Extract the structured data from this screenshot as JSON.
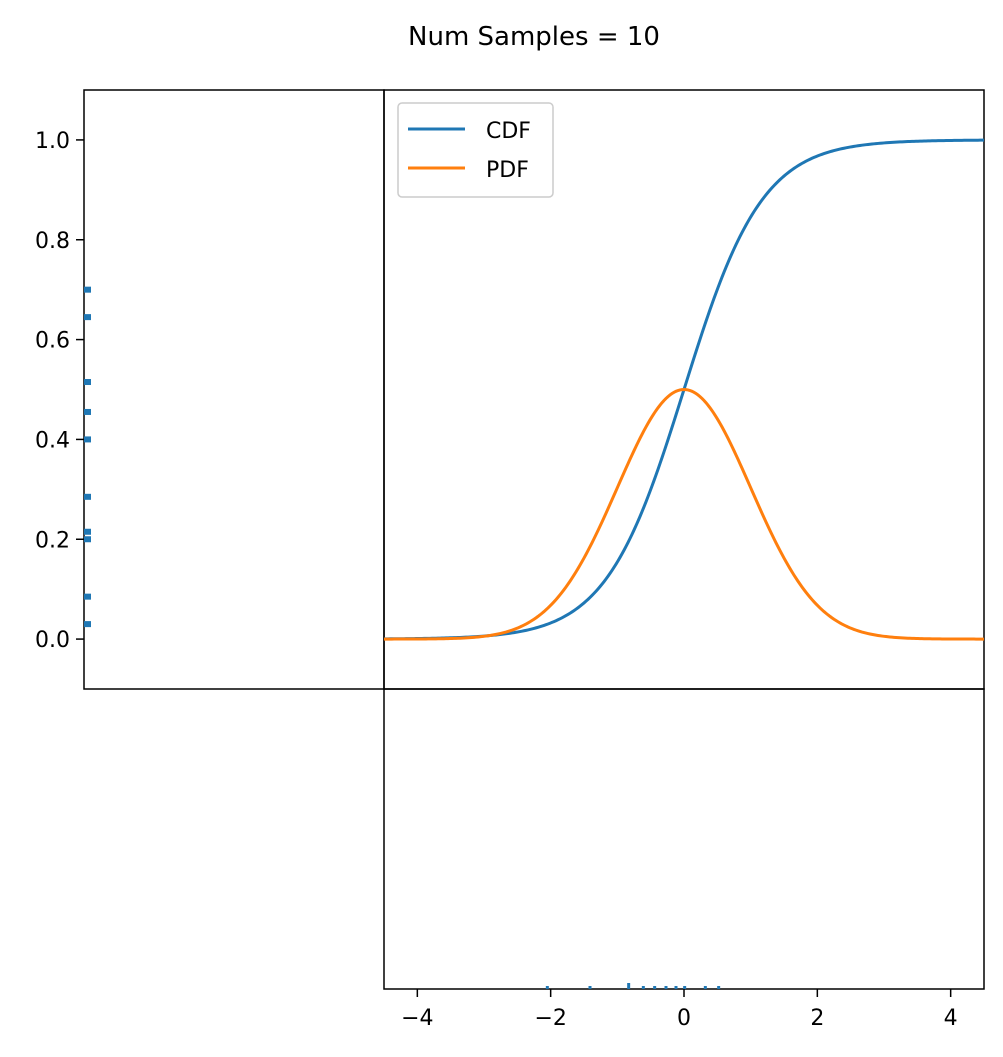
{
  "figure": {
    "title": "Num Samples = 10"
  },
  "chart_data": {
    "type": "line",
    "title": "Num Samples = 10",
    "xlabel": "",
    "ylabel": "",
    "xlim": [
      -4.5,
      4.5
    ],
    "ylim": [
      -0.1,
      1.1
    ],
    "x_ticks": [
      -4,
      -2,
      0,
      2,
      4
    ],
    "x_tick_labels": [
      "−4",
      "−2",
      "0",
      "2",
      "4"
    ],
    "y_ticks": [
      0.0,
      0.2,
      0.4,
      0.6,
      0.8,
      1.0
    ],
    "y_tick_labels": [
      "0.0",
      "0.2",
      "0.4",
      "0.6",
      "0.8",
      "1.0"
    ],
    "grid": false,
    "legend": {
      "placement": "upper-left",
      "entries": [
        "CDF",
        "PDF"
      ]
    },
    "series": [
      {
        "name": "CDF",
        "function": "logistic_cdf",
        "color": "#1f77b4"
      },
      {
        "name": "PDF",
        "function": "scaled_pdf",
        "color": "#ff7f0e"
      }
    ],
    "samples_x": [
      -2.05,
      -1.41,
      -0.83,
      -0.61,
      -0.44,
      -0.27,
      -0.12,
      0.01,
      0.32,
      0.52
    ],
    "samples_y": [
      0.03,
      0.085,
      0.2,
      0.215,
      0.285,
      0.4,
      0.455,
      0.515,
      0.645,
      0.7
    ],
    "marginal_color": "#1f77b4"
  }
}
